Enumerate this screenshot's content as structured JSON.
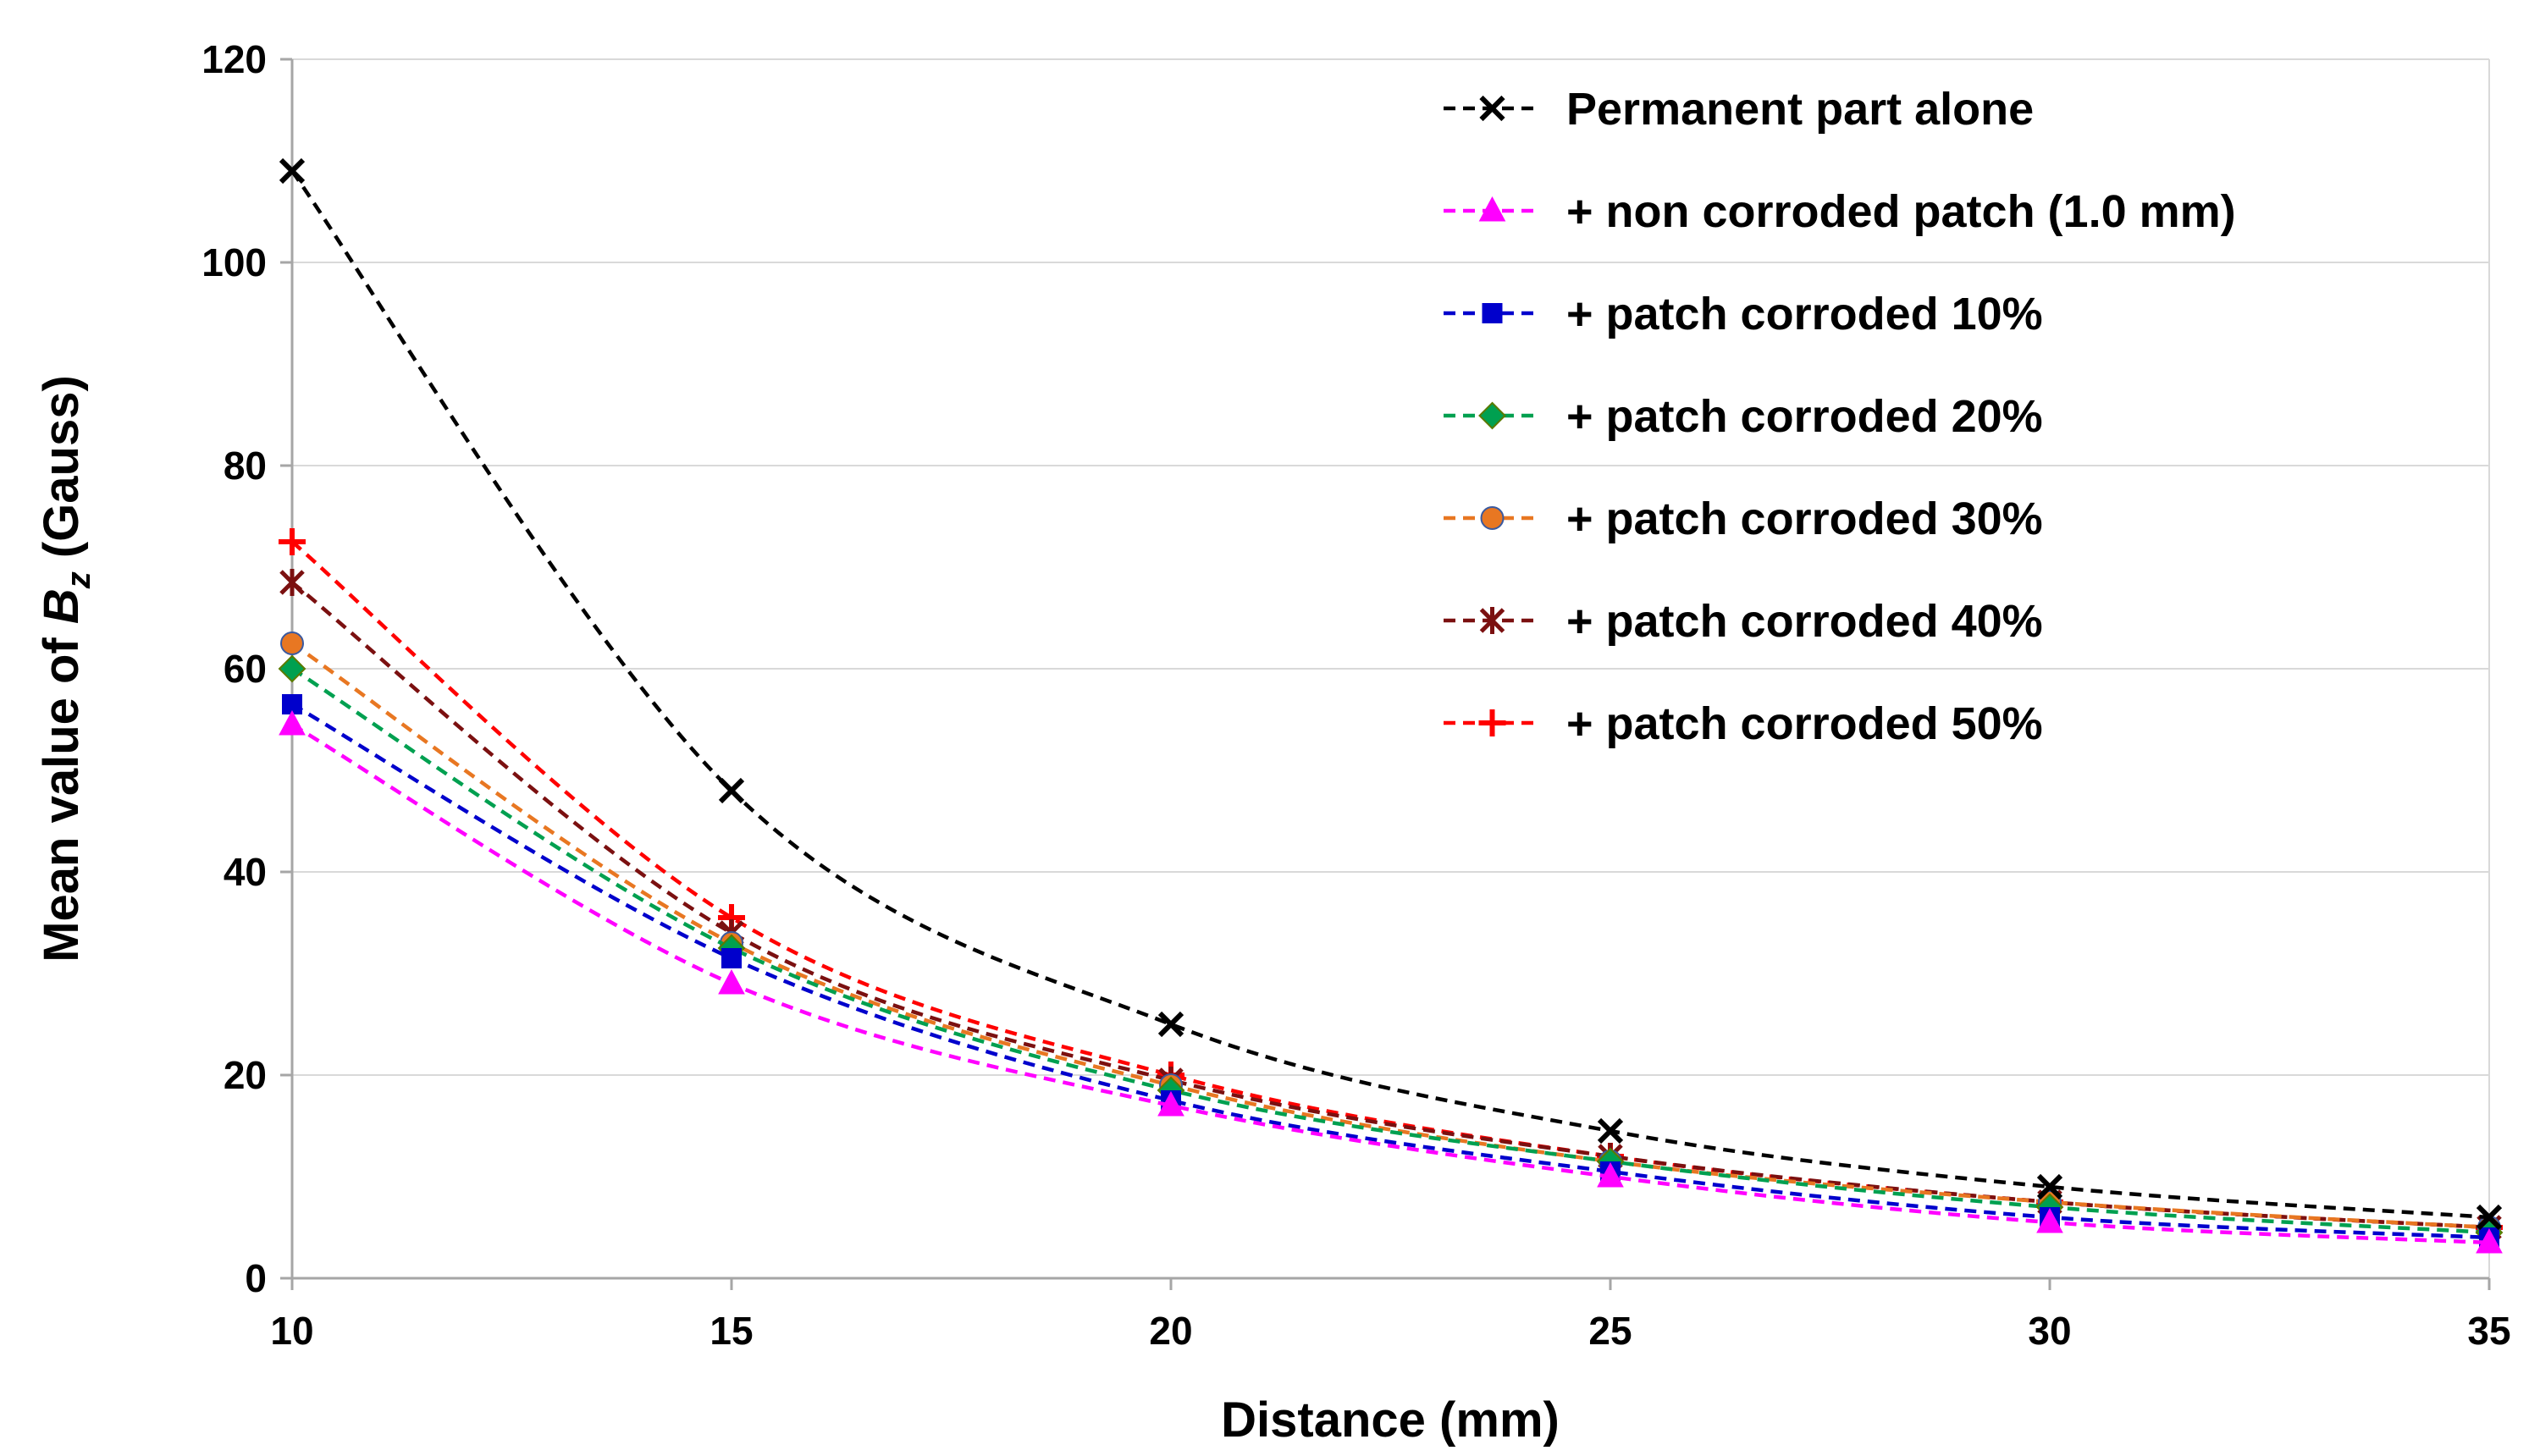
{
  "chart_data": {
    "type": "line",
    "title": "",
    "xlabel": "Distance (mm)",
    "ylabel_parts": [
      "Mean value of ",
      "B",
      "z",
      " (Gauss)"
    ],
    "xlim": [
      10,
      35
    ],
    "ylim": [
      0,
      120
    ],
    "xticks": [
      10,
      15,
      20,
      25,
      30,
      35
    ],
    "yticks": [
      0,
      20,
      40,
      60,
      80,
      100,
      120
    ],
    "grid": "horizontal",
    "legend_position": "top-right",
    "x": [
      10,
      15,
      20,
      25,
      30,
      35
    ],
    "series": [
      {
        "name": "Permanent part alone",
        "color": "#000000",
        "marker": "x",
        "values": [
          109,
          48,
          25,
          14.5,
          9,
          6
        ]
      },
      {
        "name": "+ non corroded patch (1.0 mm)",
        "color": "#FF00FF",
        "marker": "triangle",
        "values": [
          54.5,
          29,
          17,
          10,
          5.5,
          3.5
        ]
      },
      {
        "name": "+ patch corroded 10%",
        "color": "#0000CC",
        "marker": "square",
        "values": [
          56.5,
          31.5,
          17.5,
          10.5,
          6,
          4
        ]
      },
      {
        "name": "+ patch corroded 20%",
        "color": "#00A050",
        "marker": "diamond",
        "values": [
          60,
          32.5,
          18.5,
          11.5,
          7,
          4.5
        ]
      },
      {
        "name": "+ patch corroded 30%",
        "color": "#E87722",
        "marker": "circle",
        "values": [
          62.5,
          33,
          19,
          11.5,
          7.5,
          5
        ]
      },
      {
        "name": "+ patch corroded 40%",
        "color": "#7B1010",
        "marker": "asterisk",
        "values": [
          68.5,
          34,
          19.5,
          12,
          7.5,
          5
        ]
      },
      {
        "name": "+ patch corroded 50%",
        "color": "#FF0000",
        "marker": "plus",
        "values": [
          72.5,
          35.5,
          20,
          12,
          7.5,
          5
        ]
      }
    ]
  }
}
